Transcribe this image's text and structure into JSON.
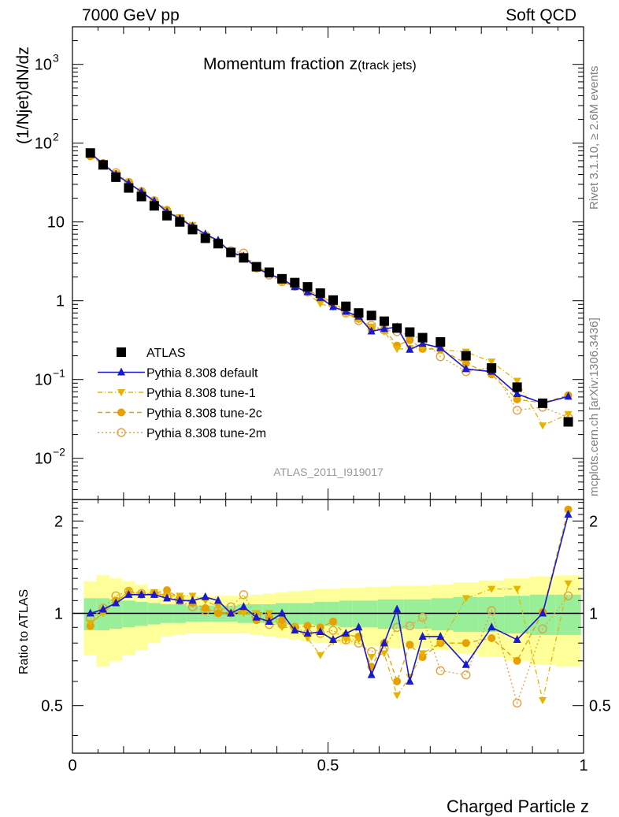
{
  "header": {
    "left": "7000 GeV pp",
    "right": "Soft QCD"
  },
  "side_text": {
    "rivet": "Rivet 3.1.10, ≥ 2.6M events",
    "mcplots": "mcplots.cern.ch [arXiv:1306.3436]"
  },
  "chart_data": {
    "type": "scatter",
    "title": "Momentum fraction ",
    "title_var": "z",
    "title_sub": "(track jets)",
    "analysis_tag": "ATLAS_2011_I919017",
    "xlabel": "Charged Particle z",
    "ylabel_top": "(1/Njet)dN/dz",
    "ylabel_bottom": "Ratio to ATLAS",
    "xlim": [
      0,
      1
    ],
    "ylim_top": [
      0.003,
      3000
    ],
    "ylim_bottom": [
      0.35,
      2.35
    ],
    "yscale_top": "log",
    "yscale_bottom": "log",
    "x_ticks": [
      "0",
      "0.5",
      "1"
    ],
    "y_ticks_top": [
      {
        "base": "10",
        "exp": "3"
      },
      {
        "base": "10",
        "exp": "2"
      },
      {
        "base": "10",
        "exp": ""
      },
      {
        "base": "1",
        "exp": ""
      },
      {
        "base": "10",
        "exp": "−1"
      },
      {
        "base": "10",
        "exp": "−2"
      }
    ],
    "y_ticks_bottom": [
      "2",
      "1",
      "0.5"
    ],
    "legend_position": "bottom-left",
    "x": [
      0.035,
      0.06,
      0.085,
      0.11,
      0.135,
      0.16,
      0.185,
      0.21,
      0.235,
      0.26,
      0.285,
      0.31,
      0.335,
      0.36,
      0.385,
      0.41,
      0.435,
      0.46,
      0.485,
      0.51,
      0.535,
      0.56,
      0.585,
      0.61,
      0.635,
      0.66,
      0.685,
      0.72,
      0.77,
      0.82,
      0.87,
      0.92,
      0.97
    ],
    "atlas_values": [
      75,
      53,
      37,
      27,
      21,
      16,
      12,
      10,
      8,
      6.2,
      5.3,
      4.1,
      3.5,
      2.7,
      2.3,
      1.9,
      1.7,
      1.5,
      1.25,
      1.02,
      0.85,
      0.7,
      0.65,
      0.55,
      0.45,
      0.4,
      0.34,
      0.3,
      0.2,
      0.14,
      0.08,
      0.05,
      0.029
    ],
    "series": [
      {
        "name": "ATLAS",
        "color": "#000000",
        "marker": "square",
        "line": "none",
        "ratio": null
      },
      {
        "name": "Pythia 8.308 default",
        "color": "#1a1acd",
        "marker": "triangle-up",
        "line": "solid",
        "ratio": [
          1.0,
          1.03,
          1.08,
          1.15,
          1.15,
          1.15,
          1.12,
          1.1,
          1.1,
          1.13,
          1.1,
          1.0,
          1.05,
          0.97,
          0.94,
          1.0,
          0.88,
          0.86,
          0.87,
          0.82,
          0.86,
          0.9,
          0.63,
          0.8,
          1.03,
          0.6,
          0.84,
          0.84,
          0.68,
          0.9,
          0.82,
          1.0,
          2.1
        ]
      },
      {
        "name": "Pythia 8.308 tune-1",
        "color": "#e6b400",
        "marker": "triangle-down",
        "line": "dashdot",
        "ratio": [
          0.93,
          1.0,
          1.09,
          1.18,
          1.15,
          1.17,
          1.14,
          1.14,
          1.14,
          1.1,
          1.05,
          1.0,
          1.0,
          1.0,
          1.0,
          0.9,
          0.9,
          0.83,
          0.73,
          0.81,
          0.82,
          0.82,
          0.72,
          0.74,
          0.54,
          0.62,
          0.74,
          0.8,
          1.12,
          1.2,
          1.2,
          0.52,
          1.25
        ]
      },
      {
        "name": "Pythia 8.308 tune-2c",
        "color": "#e6a000",
        "marker": "circle",
        "line": "dashed",
        "ratio": [
          0.91,
          1.02,
          1.1,
          1.16,
          1.15,
          1.16,
          1.19,
          1.12,
          1.08,
          1.04,
          1.0,
          1.0,
          1.02,
          0.95,
          0.97,
          0.95,
          0.9,
          0.91,
          0.9,
          0.94,
          0.85,
          0.84,
          0.67,
          0.8,
          0.6,
          0.79,
          0.72,
          0.8,
          0.8,
          0.83,
          0.7,
          1.01,
          2.18
        ]
      },
      {
        "name": "Pythia 8.308 tune-2m",
        "color": "#e6a040",
        "marker": "circle-open",
        "line": "dotted",
        "ratio": [
          0.96,
          1.04,
          1.14,
          1.18,
          1.16,
          1.16,
          1.14,
          1.1,
          1.05,
          1.02,
          1.02,
          1.05,
          1.15,
          0.97,
          0.92,
          0.92,
          0.9,
          0.86,
          0.86,
          0.88,
          0.82,
          0.8,
          0.75,
          0.77,
          0.9,
          0.91,
          0.97,
          0.65,
          0.63,
          1.02,
          0.51,
          0.89,
          1.14
        ]
      }
    ],
    "error_band_yellow": [
      0.27,
      0.33,
      0.3,
      0.27,
      0.24,
      0.2,
      0.16,
      0.15,
      0.14,
      0.14,
      0.14,
      0.14,
      0.14,
      0.15,
      0.16,
      0.17,
      0.18,
      0.19,
      0.2,
      0.2,
      0.21,
      0.21,
      0.22,
      0.22,
      0.23,
      0.23,
      0.23,
      0.24,
      0.26,
      0.28,
      0.3,
      0.32,
      0.33
    ],
    "error_band_green": [
      0.12,
      0.12,
      0.11,
      0.1,
      0.09,
      0.08,
      0.07,
      0.07,
      0.06,
      0.06,
      0.06,
      0.06,
      0.07,
      0.07,
      0.07,
      0.08,
      0.08,
      0.08,
      0.09,
      0.09,
      0.1,
      0.1,
      0.1,
      0.11,
      0.11,
      0.11,
      0.11,
      0.12,
      0.13,
      0.13,
      0.14,
      0.15,
      0.15
    ]
  }
}
